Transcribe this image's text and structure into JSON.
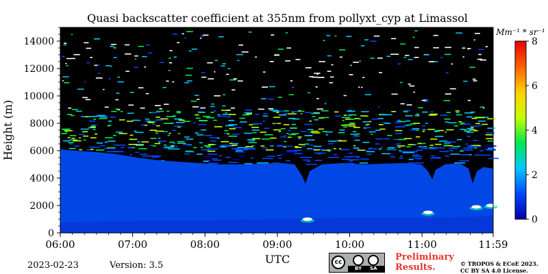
{
  "chart_data": {
    "type": "heatmap",
    "title": "Quasi backscatter coefficient at 355nm from pollyxt_cyp at Limassol",
    "xlabel": "UTC",
    "ylabel": "Height (m)",
    "x_ticks": [
      "06:00",
      "07:00",
      "08:00",
      "09:00",
      "10:00",
      "11:00",
      "11:59"
    ],
    "xlim": [
      "06:00",
      "11:59"
    ],
    "y_ticks": [
      0,
      2000,
      4000,
      6000,
      8000,
      10000,
      12000,
      14000
    ],
    "ylim": [
      0,
      15000
    ],
    "colorbar": {
      "label": "Mm⁻¹ * sr⁻¹",
      "ticks": [
        0,
        2,
        4,
        6,
        8
      ],
      "range": [
        0,
        8
      ],
      "colors": [
        "#0000aa",
        "#0047ff",
        "#00c8ff",
        "#00e850",
        "#c8ff00",
        "#ffd000",
        "#ff6000",
        "#e60000"
      ]
    },
    "background_color": "#000000",
    "regions": [
      {
        "description": "boundary layer signal",
        "height_range": [
          0,
          6000
        ],
        "approx_value": 0.8
      },
      {
        "description": "noisy cloud layer",
        "height_range": [
          6000,
          9000
        ],
        "approx_value": 2.5
      }
    ],
    "features": [
      {
        "time": "09:25",
        "height": 1000,
        "value": 8
      },
      {
        "time": "11:05",
        "height": 1500,
        "value": 8
      },
      {
        "time": "11:45",
        "height": 1900,
        "value": 8
      },
      {
        "time": "11:57",
        "height": 2000,
        "value": 8
      }
    ],
    "legend": "colorbar-right"
  },
  "footer": {
    "date": "2023-02-23",
    "version": "Version: 3.5",
    "preliminary_line1": "Preliminary",
    "preliminary_line2": "Results.",
    "copyright_line1": "© TROPOS & ECoE 2023.",
    "copyright_line2": "CC BY SA 4.0 License.",
    "badge_cc": "cc",
    "badge_by": "BY",
    "badge_sa": "SA"
  }
}
